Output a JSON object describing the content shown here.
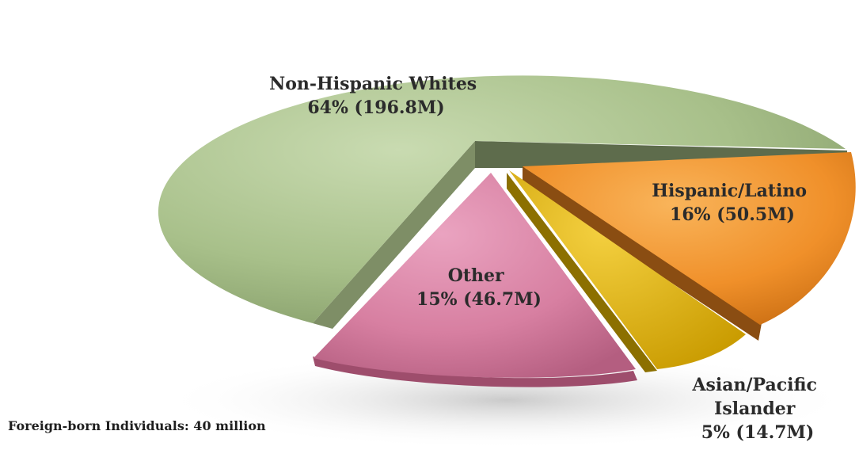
{
  "chart_data": {
    "type": "pie",
    "slices": [
      {
        "label": "Non-Hispanic Whites",
        "value_text": "64% (196.8M)",
        "percent": 64,
        "value": 196.8,
        "color": "#a8c08a",
        "exploded": false
      },
      {
        "label": "Hispanic/Latino",
        "value_text": "16% (50.5M)",
        "percent": 16,
        "value": 50.5,
        "color": "#f0902a",
        "exploded": true
      },
      {
        "label": "Asian/Pacific Islander",
        "value_text": "5% (14.7M)",
        "percent": 5,
        "value": 14.7,
        "color": "#e3b712",
        "exploded": true
      },
      {
        "label": "Other",
        "value_text": "15% (46.7M)",
        "percent": 15,
        "value": 46.7,
        "color": "#d77fa1",
        "exploded": true
      }
    ]
  },
  "footnote": "Foreign-born Individuals: 40 million"
}
